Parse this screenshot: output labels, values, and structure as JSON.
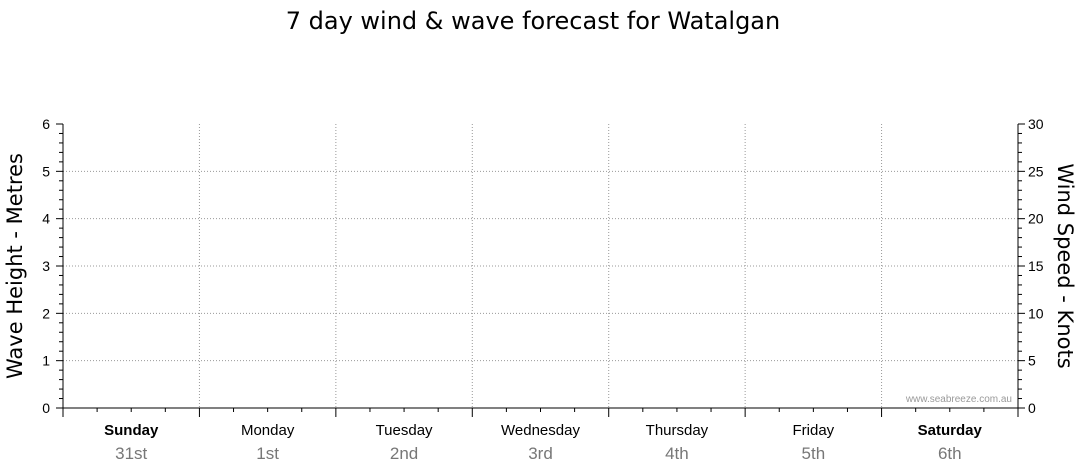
{
  "chart_data": {
    "type": "line",
    "title": "7 day wind & wave forecast for Watalgan",
    "ylabel_left": "Wave Height - Metres",
    "ylabel_right": "Wind Speed - Knots",
    "ylim_left": [
      0,
      6
    ],
    "ylim_right": [
      0,
      30
    ],
    "yticks_left": [
      0,
      1,
      2,
      3,
      4,
      5,
      6
    ],
    "yticks_right": [
      0,
      5,
      10,
      15,
      20,
      25,
      30
    ],
    "grid": true,
    "days": [
      {
        "name": "Sunday",
        "date": "31st",
        "bold": true
      },
      {
        "name": "Monday",
        "date": "1st",
        "bold": false
      },
      {
        "name": "Tuesday",
        "date": "2nd",
        "bold": false
      },
      {
        "name": "Wednesday",
        "date": "3rd",
        "bold": false
      },
      {
        "name": "Thursday",
        "date": "4th",
        "bold": false
      },
      {
        "name": "Friday",
        "date": "5th",
        "bold": false
      },
      {
        "name": "Saturday",
        "date": "6th",
        "bold": true
      }
    ],
    "series": [],
    "watermark": "www.seabreeze.com.au"
  }
}
